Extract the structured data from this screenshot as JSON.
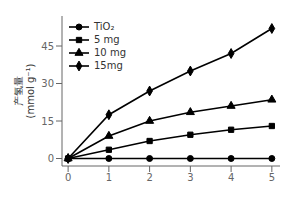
{
  "chart_data": {
    "type": "line",
    "y_label": "产氢量\n(mmol g⁻¹)",
    "x": [
      0,
      1,
      2,
      3,
      4,
      5
    ],
    "series": [
      {
        "name": "TiO₂",
        "color": "black",
        "marker": "circle",
        "values": [
          0,
          0.0,
          0.0,
          0.0,
          0.0,
          0.0
        ]
      },
      {
        "name": "5 mg",
        "color": "black",
        "marker": "square",
        "values": [
          0,
          3.5,
          7.0,
          9.5,
          11.5,
          13.0
        ]
      },
      {
        "name": "10 mg",
        "color": "black",
        "marker": "triangle",
        "values": [
          0,
          9.0,
          15.0,
          18.5,
          21.0,
          23.5
        ]
      },
      {
        "name": "15mg",
        "color": "black",
        "marker": "diamond",
        "values": [
          0,
          17.5,
          27.0,
          35.0,
          42.0,
          52.0
        ]
      }
    ],
    "xlim": [
      -0.15,
      5.2
    ],
    "ylim": [
      -3,
      57
    ],
    "xticks": [
      0,
      1,
      2,
      3,
      4,
      5
    ],
    "yticks": [
      0,
      15,
      30,
      45
    ],
    "grid": false,
    "legend": "upper left"
  }
}
